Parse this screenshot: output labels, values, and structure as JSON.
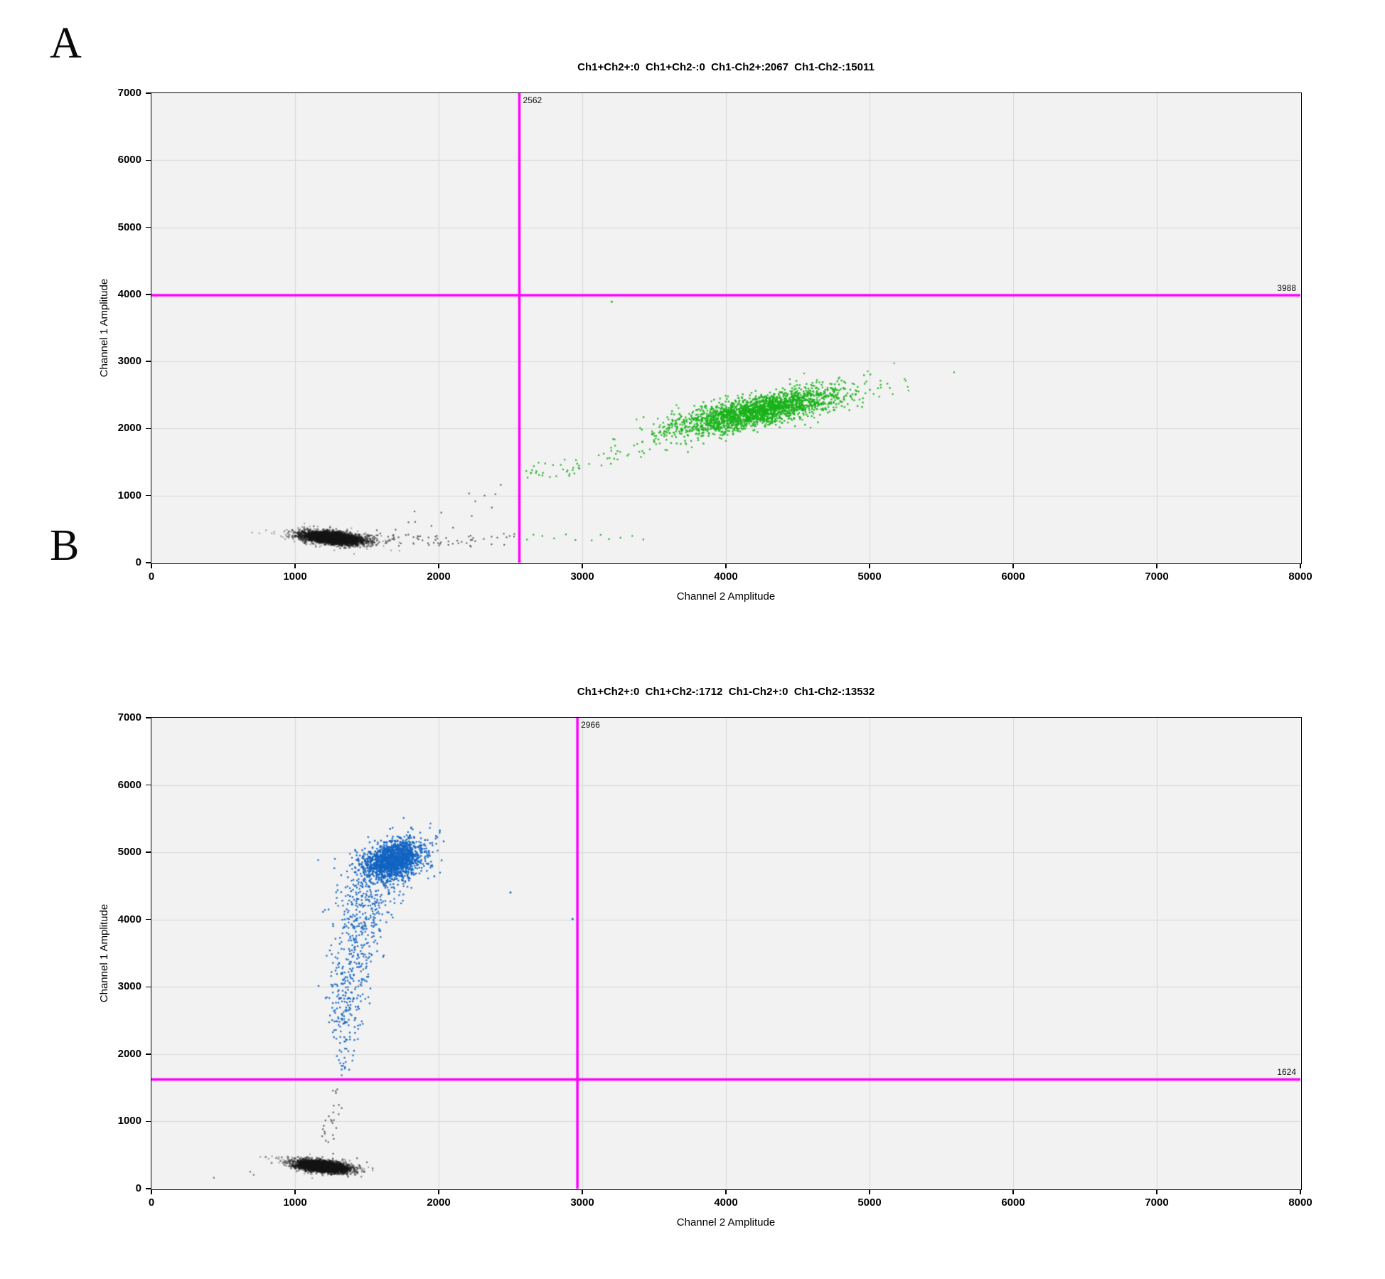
{
  "colors": {
    "positive_green": "#18b218",
    "positive_blue": "#1264c3",
    "negative_gray_core": "#161616",
    "negative_gray_single": "#5f5f5f",
    "threshold_magenta": "#ff00ff",
    "plot_bg": "#f2f2f2",
    "grid": "#d8d8d8",
    "frame": "#000000"
  },
  "panels": [
    {
      "letter": "A",
      "title": "Ch1+Ch2+:0  Ch1+Ch2-:0  Ch1-Ch2+:2067  Ch1-Ch2-:15011",
      "xlabel": "Channel 2 Amplitude",
      "ylabel": "Channel 1 Amplitude",
      "threshold_x_label": "2562",
      "threshold_y_label": "3988"
    },
    {
      "letter": "B",
      "title": "Ch1+Ch2+:0  Ch1+Ch2-:1712  Ch1-Ch2+:0  Ch1-Ch2-:13532",
      "xlabel": "Channel 2 Amplitude",
      "ylabel": "Channel 1 Amplitude",
      "threshold_x_label": "2966",
      "threshold_y_label": "1624"
    }
  ],
  "chart_data": [
    {
      "type": "scatter",
      "title": "Ch1+Ch2+:0  Ch1+Ch2-:0  Ch1-Ch2+:2067  Ch1-Ch2-:15011",
      "xlabel": "Channel 2 Amplitude",
      "ylabel": "Channel 1 Amplitude",
      "xlim": [
        0,
        8000
      ],
      "ylim": [
        0,
        7000
      ],
      "xtick_step": 1000,
      "ytick_step": 1000,
      "grid": true,
      "thresholds": {
        "x": 2562,
        "y": 3988
      },
      "quadrant_counts": {
        "ch1pos_ch2pos": 0,
        "ch1pos_ch2neg": 0,
        "ch1neg_ch2pos": 2067,
        "ch1neg_ch2neg": 15011
      },
      "series": [
        {
          "name": "negative-halo",
          "droplet_class": "Ch1-Ch2-",
          "color": "rgba(125,125,125,0.7)",
          "size": 2.1,
          "seed": 11,
          "gen": {
            "type": "gaussian",
            "n": 430,
            "cx": 1262,
            "cy": 372,
            "sx": 165,
            "sy": 60,
            "tilt": -0.18
          }
        },
        {
          "name": "negative-core",
          "droplet_class": "Ch1-Ch2-",
          "color": "rgba(22,22,22,0.5)",
          "size": 2.6,
          "seed": 12,
          "gen": {
            "type": "gaussian",
            "n": 3300,
            "cx": 1260,
            "cy": 368,
            "sx": 98,
            "sy": 40,
            "tilt": -0.2
          }
        },
        {
          "name": "negative-trail",
          "droplet_class": "Ch1-Ch2-",
          "color": "rgba(85,85,85,0.95)",
          "size": 2.1,
          "seed": 13,
          "gen": {
            "type": "band",
            "n": 90,
            "x0": 1490,
            "x1": 2555,
            "y0": 350,
            "slope": -0.015,
            "sigma": 52,
            "power": 1.5
          }
        },
        {
          "name": "negative-singles",
          "droplet_class": "Ch1-Ch2-",
          "color": "rgba(95,95,95,0.95)",
          "size": 2.2,
          "seed": 14,
          "gen": {
            "type": "points",
            "pts": [
              [
                1700,
                492
              ],
              [
                1790,
                602
              ],
              [
                1836,
                608
              ],
              [
                1832,
                764
              ],
              [
                1950,
                548
              ],
              [
                2018,
                746
              ],
              [
                2100,
                522
              ],
              [
                2212,
                1032
              ],
              [
                2230,
                695
              ],
              [
                2255,
                915
              ],
              [
                2320,
                1000
              ],
              [
                2370,
                822
              ],
              [
                2395,
                1020
              ],
              [
                2432,
                1160
              ]
            ]
          }
        },
        {
          "name": "positive-trail",
          "droplet_class": "Ch1-Ch2+",
          "color": "rgba(24,178,24,0.95)",
          "size": 2.2,
          "seed": 15,
          "gen": {
            "type": "band",
            "n": 64,
            "x0": 2600,
            "x1": 3640,
            "y0": 1280,
            "slope": 0.58,
            "sigma": 95,
            "power": 1.2
          }
        },
        {
          "name": "positive-fringe",
          "droplet_class": "Ch1-Ch2+",
          "color": "rgba(24,178,24,0.95)",
          "size": 2.1,
          "seed": 16,
          "gen": {
            "type": "gaussian",
            "n": 150,
            "cx": 4220,
            "cy": 2265,
            "sx": 430,
            "sy": 170,
            "tilt": 0.4
          }
        },
        {
          "name": "positive-core",
          "droplet_class": "Ch1-Ch2+",
          "color": "rgba(24,178,24,0.9)",
          "size": 2.4,
          "seed": 17,
          "gen": {
            "type": "gaussian",
            "n": 2050,
            "cx": 4225,
            "cy": 2260,
            "sx": 290,
            "sy": 112,
            "tilt": 0.42
          }
        },
        {
          "name": "positive-low-band",
          "droplet_class": "Ch1-Ch2+",
          "color": "rgba(24,178,24,0.95)",
          "size": 2.2,
          "seed": 18,
          "gen": {
            "type": "points",
            "pts": [
              [
                2615,
                345
              ],
              [
                2660,
                418
              ],
              [
                2722,
                398
              ],
              [
                2804,
                362
              ],
              [
                2886,
                422
              ],
              [
                2952,
                338
              ],
              [
                3065,
                332
              ],
              [
                3128,
                415
              ],
              [
                3186,
                352
              ],
              [
                3266,
                372
              ],
              [
                3348,
                398
              ],
              [
                3425,
                345
              ]
            ]
          }
        },
        {
          "name": "positive-single-high",
          "droplet_class": "Ch1-Ch2+",
          "color": "rgba(24,178,24,1)",
          "size": 2.6,
          "seed": 19,
          "gen": {
            "type": "points",
            "pts": [
              [
                3205,
                3890
              ]
            ]
          }
        }
      ]
    },
    {
      "type": "scatter",
      "title": "Ch1+Ch2+:0  Ch1+Ch2-:1712  Ch1-Ch2+:0  Ch1-Ch2-:13532",
      "xlabel": "Channel 2 Amplitude",
      "ylabel": "Channel 1 Amplitude",
      "xlim": [
        0,
        8000
      ],
      "ylim": [
        0,
        7000
      ],
      "xtick_step": 1000,
      "ytick_step": 1000,
      "grid": true,
      "thresholds": {
        "x": 2966,
        "y": 1624
      },
      "quadrant_counts": {
        "ch1pos_ch2pos": 0,
        "ch1pos_ch2neg": 1712,
        "ch1neg_ch2pos": 0,
        "ch1neg_ch2neg": 13532
      },
      "series": [
        {
          "name": "negative-halo",
          "droplet_class": "Ch1-Ch2-",
          "color": "rgba(125,125,125,0.7)",
          "size": 2.1,
          "seed": 21,
          "gen": {
            "type": "gaussian",
            "n": 400,
            "cx": 1190,
            "cy": 335,
            "sx": 130,
            "sy": 55,
            "tilt": -0.2
          }
        },
        {
          "name": "negative-core",
          "droplet_class": "Ch1-Ch2-",
          "color": "rgba(22,22,22,0.5)",
          "size": 2.6,
          "seed": 22,
          "gen": {
            "type": "gaussian",
            "n": 3100,
            "cx": 1188,
            "cy": 330,
            "sx": 86,
            "sy": 38,
            "tilt": -0.22
          }
        },
        {
          "name": "negative-right-singles",
          "droplet_class": "Ch1-Ch2-",
          "color": "rgba(95,95,95,0.95)",
          "size": 2.2,
          "seed": 23,
          "gen": {
            "type": "points",
            "pts": [
              [
                1500,
                392
              ],
              [
                1540,
                302
              ],
              [
                1478,
                256
              ],
              [
                1432,
                452
              ]
            ]
          }
        },
        {
          "name": "negative-vertical-trail",
          "droplet_class": "Ch1-Ch2-",
          "color": "rgba(90,90,90,0.95)",
          "size": 2.2,
          "seed": 24,
          "gen": {
            "type": "vband",
            "n": 26,
            "y0": 500,
            "y1": 1600,
            "power": 1,
            "xa": 1230,
            "k1": 0.045,
            "yk": 1600,
            "k2": 0,
            "s0": 36,
            "s1": 36
          }
        },
        {
          "name": "negative-outliers",
          "droplet_class": "Ch1-Ch2-",
          "color": "rgba(105,105,105,0.95)",
          "size": 2.2,
          "seed": 25,
          "gen": {
            "type": "points",
            "pts": [
              [
                435,
                162
              ],
              [
                688,
                252
              ],
              [
                712,
                206
              ]
            ]
          }
        },
        {
          "name": "positive-tail",
          "droplet_class": "Ch1+Ch2-",
          "color": "rgba(18,100,195,0.92)",
          "size": 2.3,
          "seed": 26,
          "gen": {
            "type": "vband",
            "n": 560,
            "y0": 1650,
            "y1": 4600,
            "power": 0.6,
            "xa": 1315,
            "k1": 0.05,
            "yk": 3300,
            "k2": 0.1,
            "s0": 36,
            "s1": 112
          }
        },
        {
          "name": "positive-fringe",
          "droplet_class": "Ch1+Ch2-",
          "color": "rgba(18,100,195,0.92)",
          "size": 2.2,
          "seed": 27,
          "gen": {
            "type": "gaussian",
            "n": 120,
            "cx": 1690,
            "cy": 4880,
            "sx": 165,
            "sy": 205,
            "tilt": 0.45
          }
        },
        {
          "name": "positive-core",
          "droplet_class": "Ch1+Ch2-",
          "color": "rgba(18,100,195,0.9)",
          "size": 2.4,
          "seed": 28,
          "gen": {
            "type": "gaussian",
            "n": 1520,
            "cx": 1680,
            "cy": 4885,
            "sx": 105,
            "sy": 138,
            "tilt": 0.5
          }
        },
        {
          "name": "positive-top-singles",
          "droplet_class": "Ch1+Ch2-",
          "color": "rgba(18,100,195,1)",
          "size": 2.4,
          "seed": 29,
          "gen": {
            "type": "points",
            "pts": [
              [
                1662,
                5348
              ],
              [
                2008,
                5322
              ],
              [
                1982,
                5242
              ],
              [
                2035,
                5162
              ],
              [
                1905,
                5182
              ]
            ]
          }
        },
        {
          "name": "positive-outliers",
          "droplet_class": "Ch1+Ch2-",
          "color": "rgba(18,100,195,1)",
          "size": 2.6,
          "seed": 30,
          "gen": {
            "type": "points",
            "pts": [
              [
                2500,
                4402
              ],
              [
                2932,
                4008
              ]
            ]
          }
        }
      ]
    }
  ]
}
